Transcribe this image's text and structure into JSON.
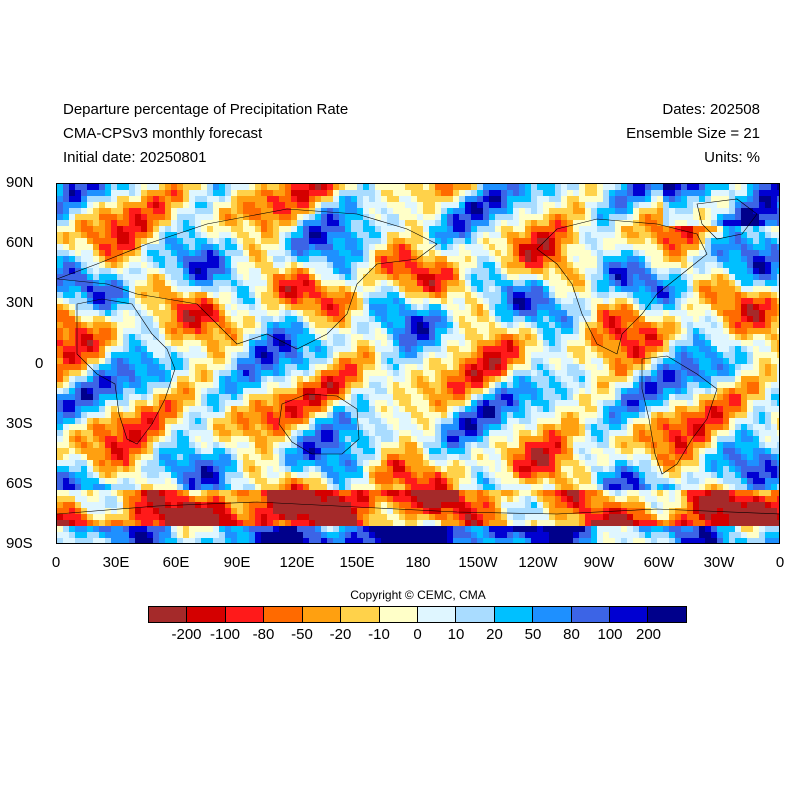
{
  "header": {
    "title_line1": "Departure percentage of Precipitation Rate",
    "title_line2": "CMA-CPSv3 monthly forecast",
    "title_line3": "Initial date: 20250801",
    "dates": "Dates: 202508",
    "ensemble": "Ensemble Size = 21",
    "units": "Units: %"
  },
  "axes": {
    "lat_labels": [
      "90N",
      "60N",
      "30N",
      "0",
      "30S",
      "60S",
      "90S"
    ],
    "lon_labels": [
      "0",
      "30E",
      "60E",
      "90E",
      "120E",
      "150E",
      "180",
      "150W",
      "120W",
      "90W",
      "60W",
      "30W",
      "0"
    ]
  },
  "legend": {
    "colors": [
      "#a52a2a",
      "#d40000",
      "#ff1a1a",
      "#ff6a00",
      "#ffa010",
      "#ffd24a",
      "#ffffc8",
      "#dff6ff",
      "#a9dcff",
      "#00c0ff",
      "#1e90ff",
      "#3c64e6",
      "#0000d2",
      "#00008b"
    ],
    "ticks": [
      "-200",
      "-100",
      "-80",
      "-50",
      "-20",
      "-10",
      "0",
      "10",
      "20",
      "50",
      "80",
      "100",
      "200"
    ]
  },
  "copyright": "Copyright © CEMC, CMA"
}
